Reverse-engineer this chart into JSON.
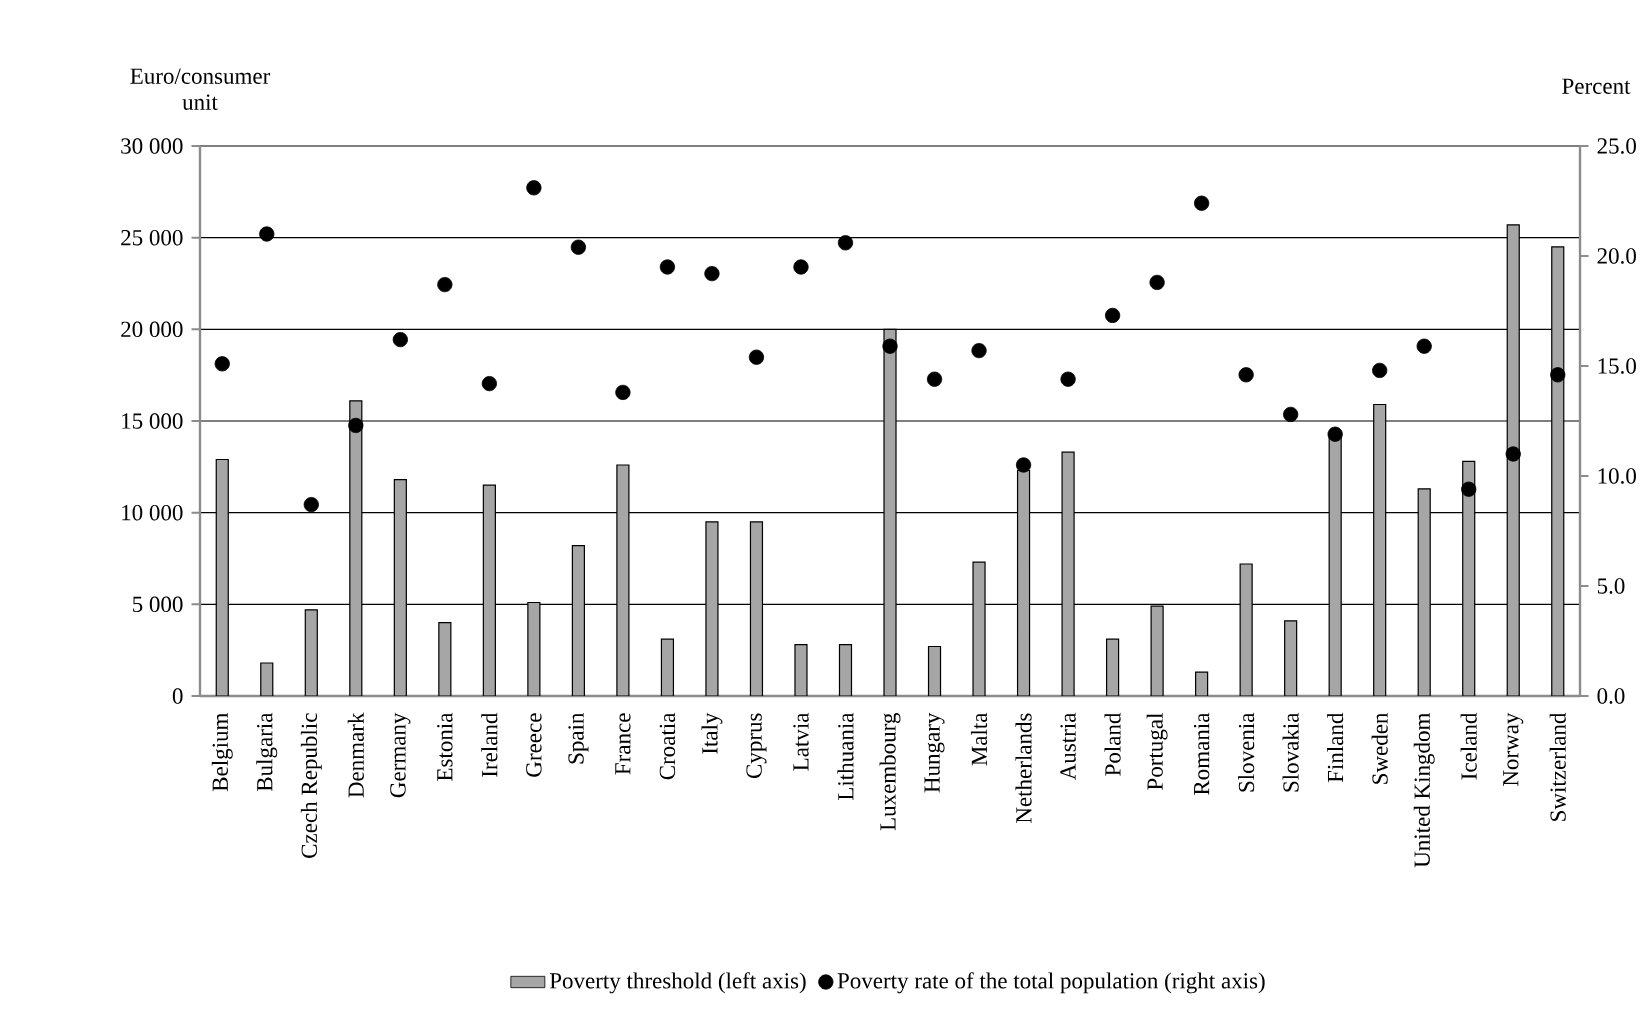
{
  "chart_data": {
    "type": "bar",
    "ylabel": "Euro/consumer unit",
    "y2label": "Percent",
    "categories": [
      "Belgium",
      "Bulgaria",
      "Czech Republic",
      "Denmark",
      "Germany",
      "Estonia",
      "Ireland",
      "Greece",
      "Spain",
      "France",
      "Croatia",
      "Italy",
      "Cyprus",
      "Latvia",
      "Lithuania",
      "Luxembourg",
      "Hungary",
      "Malta",
      "Netherlands",
      "Austria",
      "Poland",
      "Portugal",
      "Romania",
      "Slovenia",
      "Slovakia",
      "Finland",
      "Sweden",
      "United Kingdom",
      "Iceland",
      "Norway",
      "Switzerland"
    ],
    "series": [
      {
        "name": "Poverty threshold (left axis)",
        "color": "#a6a6a6",
        "values": [
          12900,
          1800,
          4700,
          16100,
          11800,
          4000,
          11500,
          5100,
          8200,
          12600,
          3100,
          9500,
          9500,
          2800,
          2800,
          20000,
          2700,
          7300,
          12300,
          13300,
          3100,
          4900,
          1300,
          7200,
          4100,
          14100,
          15900,
          11300,
          12800,
          25700,
          24500
        ]
      },
      {
        "name": "Poverty rate of the total population (right axis)",
        "type": "scatter",
        "axis": "y2",
        "color": "#000000",
        "marker": "circle",
        "values": [
          15.1,
          21.0,
          8.7,
          12.3,
          16.2,
          18.7,
          14.2,
          23.1,
          20.4,
          13.8,
          19.5,
          19.2,
          15.4,
          19.5,
          20.6,
          15.9,
          14.4,
          15.7,
          10.5,
          14.4,
          17.3,
          18.8,
          22.4,
          14.6,
          12.8,
          11.9,
          14.8,
          15.9,
          9.4,
          11.0,
          14.6
        ]
      }
    ],
    "ylim": [
      0,
      30000
    ],
    "yticks": [
      0,
      {
        "value": 5000,
        "label": "5 000"
      },
      {
        "value": 10000,
        "label": "10 000"
      },
      {
        "value": 15000,
        "label": "15 000"
      },
      {
        "value": 20000,
        "label": "20 000"
      },
      {
        "value": 25000,
        "label": "25 000"
      },
      {
        "value": 30000,
        "label": "30 000"
      }
    ],
    "y2lim": [
      0,
      25
    ],
    "y2ticks": [
      {
        "value": 0,
        "label": "0.0"
      },
      {
        "value": 5,
        "label": "5.0"
      },
      {
        "value": 10,
        "label": "10.0"
      },
      {
        "value": 15,
        "label": "15.0"
      },
      {
        "value": 20,
        "label": "20.0"
      },
      {
        "value": 25,
        "label": "25.0"
      }
    ],
    "grid": "y",
    "legend": "bottom"
  }
}
